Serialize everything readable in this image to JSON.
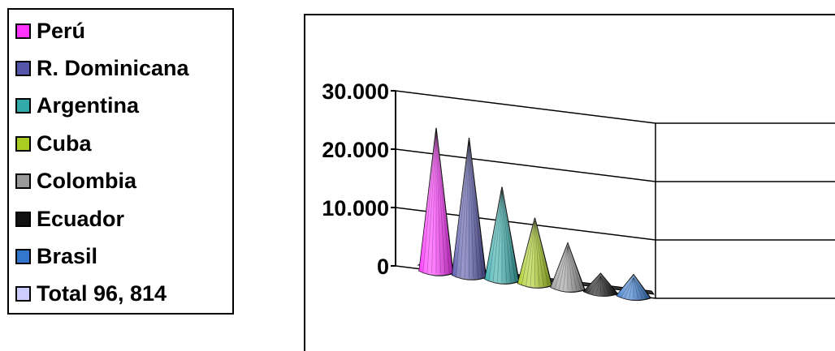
{
  "chart_data": {
    "type": "bar",
    "style": "3d-cone",
    "categories": [
      "Perú",
      "R. Dominicana",
      "Argentina",
      "Cuba",
      "Colombia",
      "Ecuador",
      "Brasil",
      "Total 96, 814"
    ],
    "values": [
      24500,
      23500,
      15800,
      11200,
      7600,
      3800,
      4300,
      0
    ],
    "colors": [
      "#ff33ff",
      "#5555aa",
      "#33aaaa",
      "#aacc22",
      "#999999",
      "#111111",
      "#3377cc",
      "#ccccff"
    ],
    "ylim": [
      0,
      30000
    ],
    "yticks": [
      "0",
      "10.000",
      "20.000",
      "30.000"
    ],
    "ytick_values": [
      0,
      10000,
      20000,
      30000
    ],
    "grid": true,
    "legend_position": "left",
    "title": "",
    "xlabel": "",
    "ylabel": ""
  }
}
